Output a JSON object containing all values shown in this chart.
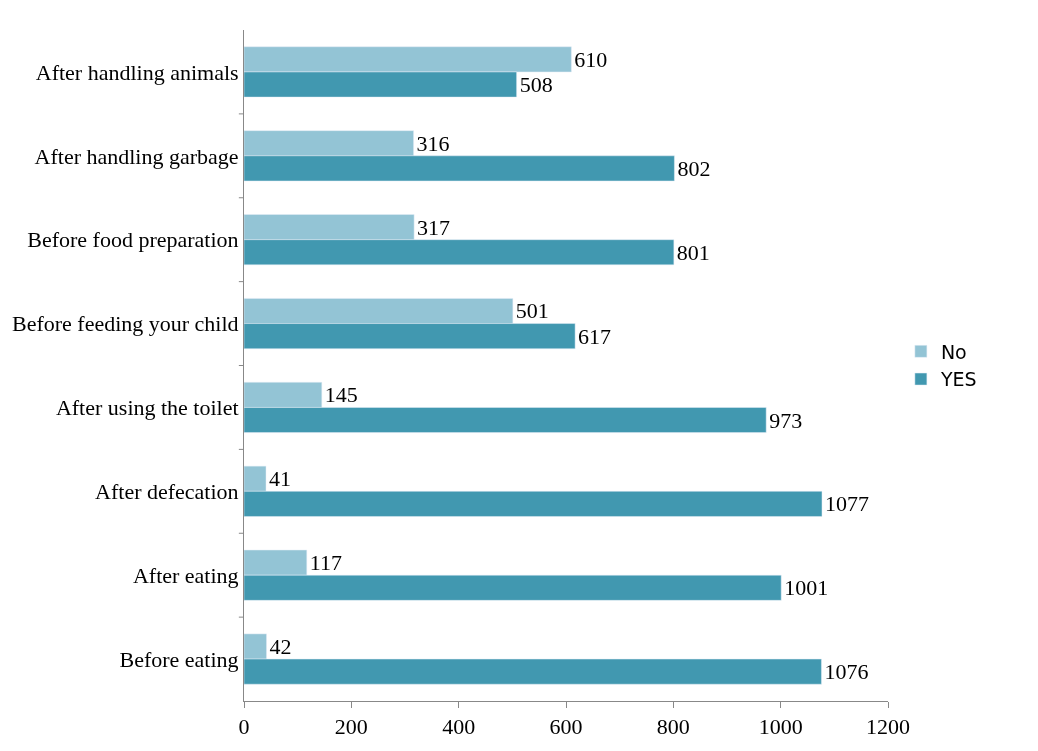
{
  "chart_data": {
    "type": "bar",
    "orientation": "horizontal",
    "categories": [
      "After handling animals",
      "After handling garbage",
      "Before food preparation",
      "Before feeding your child",
      "After using the toilet",
      "After defecation",
      "After eating",
      "Before eating"
    ],
    "series": [
      {
        "name": "No",
        "color": "#93c4d5",
        "values": [
          610,
          316,
          317,
          501,
          145,
          41,
          117,
          42
        ]
      },
      {
        "name": "YES",
        "color": "#4198b0",
        "values": [
          508,
          802,
          801,
          617,
          973,
          1077,
          1001,
          1076
        ]
      }
    ],
    "xlim": [
      0,
      1200
    ],
    "xticks": [
      0,
      200,
      400,
      600,
      800,
      1000,
      1200
    ],
    "data_labels": true,
    "legend": "right"
  }
}
